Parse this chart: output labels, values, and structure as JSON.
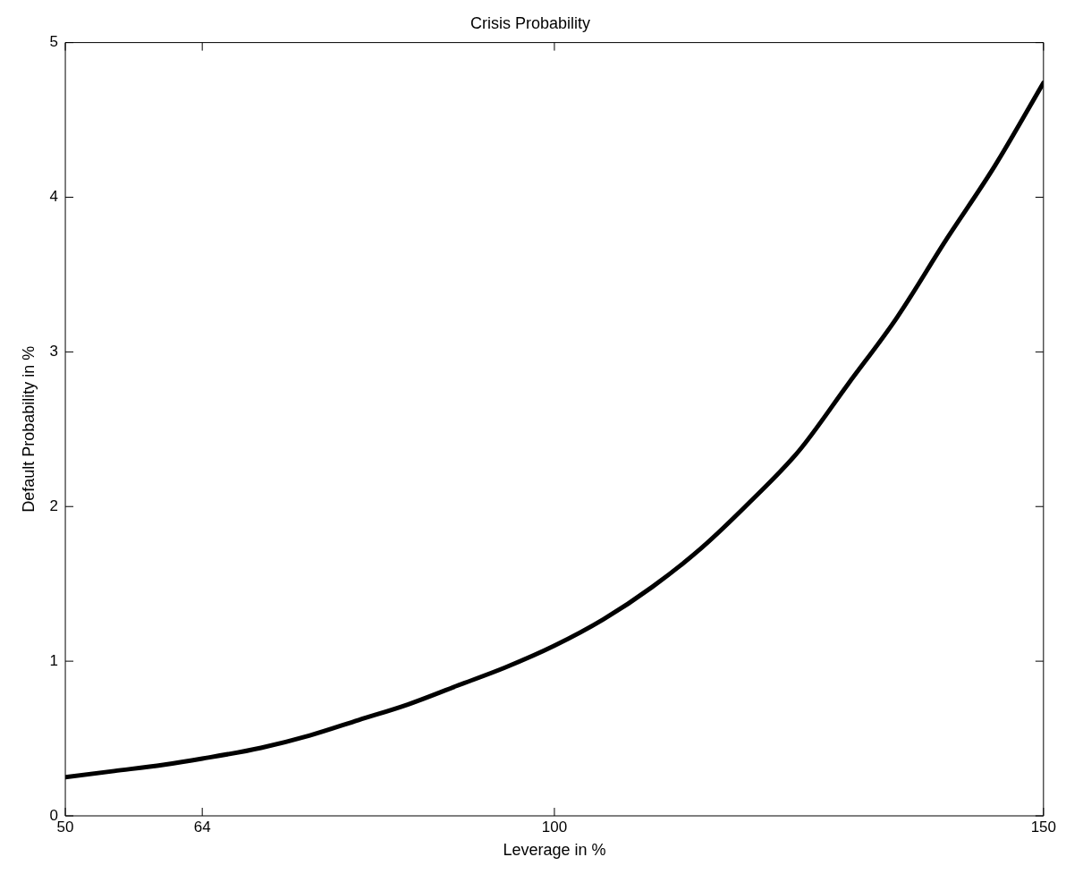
{
  "chart_data": {
    "type": "line",
    "title": "Crisis Probability",
    "xlabel": "Leverage in %",
    "ylabel": "Default Probability in %",
    "series": [
      {
        "color": "#000000",
        "x": [
          50,
          55,
          60,
          64,
          70,
          75,
          80,
          85,
          90,
          95,
          100,
          105,
          110,
          115,
          120,
          125,
          130,
          135,
          140,
          145,
          150
        ],
        "values": [
          0.25,
          0.29,
          0.33,
          0.37,
          0.44,
          0.52,
          0.62,
          0.72,
          0.84,
          0.96,
          1.1,
          1.27,
          1.48,
          1.73,
          2.03,
          2.36,
          2.79,
          3.22,
          3.72,
          4.2,
          4.74
        ]
      }
    ],
    "xlim": [
      50,
      150
    ],
    "xticks": [
      50,
      64,
      100,
      150
    ],
    "ylim": [
      0,
      5
    ],
    "yticks": [
      0,
      1,
      2,
      3,
      4,
      5
    ],
    "grid": false,
    "legend": false,
    "marker": "none",
    "line_style": "solid"
  }
}
